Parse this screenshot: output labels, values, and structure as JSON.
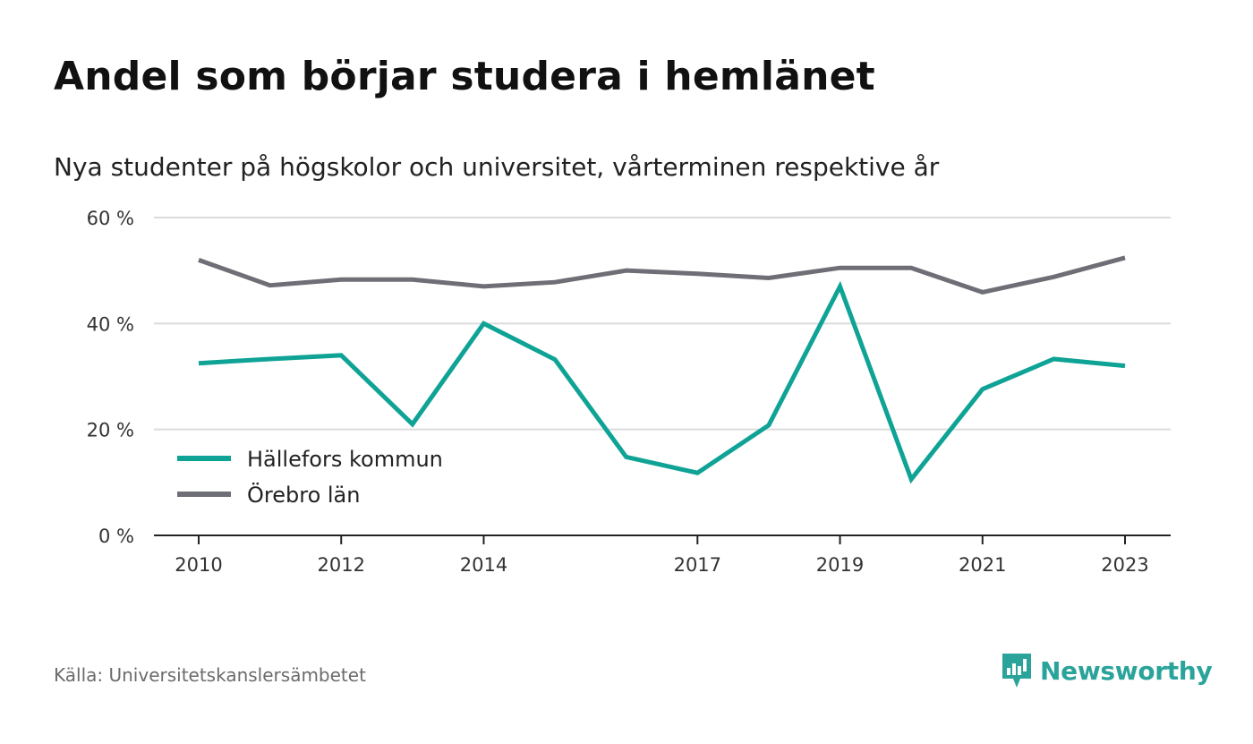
{
  "title": "Andel som börjar studera i hemlänet",
  "subtitle": "Nya studenter på högskolor och universitet, vårterminen respektive år",
  "source": "Källa: Universitetskanslersämbetet",
  "brand": {
    "name": "Newsworthy",
    "icon": "newsworthy-logo-icon",
    "color": "#2aa39a"
  },
  "chart_data": {
    "type": "line",
    "x": [
      2010,
      2011,
      2012,
      2013,
      2014,
      2015,
      2016,
      2017,
      2018,
      2019,
      2020,
      2021,
      2022,
      2023
    ],
    "x_tick_labels": [
      "2010",
      "2012",
      "2014",
      "2017",
      "2019",
      "2021",
      "2023"
    ],
    "y_ticks": [
      0,
      20,
      40,
      60
    ],
    "y_tick_labels": [
      "0 %",
      "20 %",
      "40 %",
      "60 %"
    ],
    "ylim": [
      0,
      60
    ],
    "grid": true,
    "legend_position": "bottom-left",
    "series": [
      {
        "name": "Hällefors kommun",
        "color": "#0fa396",
        "values": [
          32.5,
          33.3,
          34.0,
          21.0,
          40.0,
          33.2,
          14.8,
          11.8,
          20.8,
          47.0,
          10.6,
          27.6,
          33.3,
          32.0
        ]
      },
      {
        "name": "Örebro län",
        "color": "#6e6e76",
        "values": [
          52.0,
          47.2,
          48.3,
          48.3,
          47.0,
          47.8,
          50.0,
          49.4,
          48.6,
          50.5,
          50.5,
          45.9,
          48.8,
          52.4
        ]
      }
    ]
  }
}
